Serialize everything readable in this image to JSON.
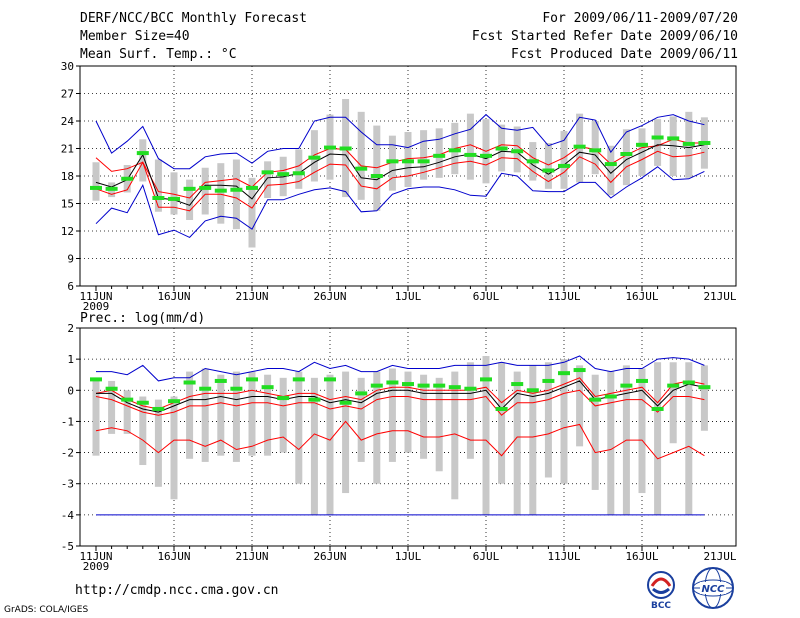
{
  "header": {
    "title": "DERF/NCC/BCC Monthly Forecast",
    "member_size": "Member Size=40",
    "variable": "Mean Surf. Temp.: °C",
    "period": "For 2009/06/11-2009/07/20",
    "started": "Fcst Started Refer Date 2009/06/10",
    "produced": "Fcst Produced Date 2009/06/11"
  },
  "footer": {
    "url": "http://cmdp.ncc.cma.gov.cn",
    "credit": "GrADS: COLA/IGES",
    "logo_bcc": "BCC",
    "logo_ncc": "NCC"
  },
  "chart_data": [
    {
      "type": "line",
      "title": "Mean Surf. Temp.: °C",
      "ylim": [
        6,
        30
      ],
      "yticks": [
        6,
        9,
        12,
        15,
        18,
        21,
        24,
        27,
        30
      ],
      "x_tick_labels": [
        "11JUN",
        "16JUN",
        "21JUN",
        "26JUN",
        "1JUL",
        "6JUL",
        "11JUL",
        "16JUL",
        "21JUL"
      ],
      "x_year_label": "2009",
      "days": 40,
      "grid": true,
      "series": [
        {
          "name": "max",
          "color": "#0000cc",
          "values": [
            24.0,
            20.5,
            21.8,
            23.4,
            19.9,
            18.8,
            18.8,
            20.1,
            20.4,
            20.5,
            19.4,
            20.7,
            21.0,
            21.0,
            24.0,
            24.4,
            24.4,
            22.8,
            21.4,
            21.4,
            21.1,
            21.8,
            22.0,
            22.6,
            23.1,
            24.7,
            23.2,
            23.0,
            23.3,
            21.3,
            21.9,
            24.4,
            24.1,
            20.6,
            22.8,
            23.5,
            24.4,
            24.7,
            24.0,
            23.6
          ]
        },
        {
          "name": "upper",
          "color": "#ff0000",
          "values": [
            20.0,
            18.5,
            18.8,
            19.5,
            16.3,
            16.0,
            15.6,
            17.3,
            17.5,
            17.7,
            16.8,
            18.4,
            18.6,
            19.1,
            20.3,
            21.0,
            20.9,
            19.1,
            18.9,
            19.5,
            19.9,
            20.0,
            20.3,
            21.0,
            21.4,
            20.7,
            21.4,
            21.3,
            20.0,
            19.2,
            20.0,
            21.2,
            20.9,
            19.3,
            20.3,
            21.1,
            21.3,
            22.0,
            21.6,
            21.6
          ]
        },
        {
          "name": "mean",
          "color": "#000000",
          "values": [
            17.3,
            16.8,
            17.6,
            20.3,
            15.6,
            15.4,
            14.8,
            17.0,
            17.0,
            16.9,
            15.5,
            17.8,
            17.9,
            18.3,
            19.5,
            20.4,
            20.3,
            17.8,
            17.6,
            18.6,
            18.9,
            19.0,
            19.5,
            20.1,
            20.4,
            19.9,
            20.7,
            20.6,
            19.2,
            18.2,
            19.2,
            20.6,
            20.3,
            18.3,
            19.8,
            20.6,
            21.4,
            21.3,
            21.1,
            21.4
          ]
        },
        {
          "name": "lower",
          "color": "#ff0000",
          "values": [
            16.6,
            16.0,
            16.5,
            19.5,
            14.6,
            14.6,
            14.2,
            16.0,
            16.0,
            15.6,
            14.5,
            17.0,
            17.1,
            17.4,
            18.4,
            19.3,
            19.2,
            16.9,
            16.6,
            17.8,
            18.0,
            18.4,
            18.9,
            19.4,
            19.6,
            19.2,
            20.0,
            19.9,
            18.5,
            17.4,
            18.4,
            20.1,
            19.3,
            17.3,
            19.0,
            19.8,
            20.7,
            20.1,
            20.2,
            20.6
          ]
        },
        {
          "name": "min",
          "color": "#0000cc",
          "values": [
            12.8,
            14.5,
            14.0,
            17.0,
            11.6,
            12.1,
            11.3,
            13.1,
            13.6,
            13.4,
            12.2,
            15.4,
            15.4,
            16.0,
            16.5,
            16.7,
            16.3,
            14.1,
            14.2,
            16.0,
            16.6,
            16.8,
            16.8,
            16.5,
            15.9,
            15.8,
            18.3,
            18.0,
            16.4,
            16.3,
            16.3,
            17.3,
            17.3,
            15.6,
            16.8,
            17.8,
            19.0,
            17.6,
            17.7,
            18.5
          ]
        }
      ],
      "ensemble_boxes": [
        [
          15.3,
          19.5
        ],
        [
          15.7,
          17.3
        ],
        [
          16.2,
          19.2
        ],
        [
          17.4,
          22.0
        ],
        [
          14.1,
          19.8
        ],
        [
          13.8,
          18.4
        ],
        [
          13.2,
          17.6
        ],
        [
          13.8,
          18.9
        ],
        [
          12.8,
          19.4
        ],
        [
          12.2,
          19.8
        ],
        [
          10.2,
          17.8
        ],
        [
          15.6,
          19.6
        ],
        [
          15.8,
          20.1
        ],
        [
          16.6,
          20.9
        ],
        [
          17.4,
          23.0
        ],
        [
          17.6,
          24.7
        ],
        [
          15.7,
          26.4
        ],
        [
          15.4,
          25.0
        ],
        [
          14.2,
          23.5
        ],
        [
          16.4,
          22.4
        ],
        [
          16.8,
          22.8
        ],
        [
          17.6,
          23.0
        ],
        [
          17.8,
          23.2
        ],
        [
          18.2,
          23.8
        ],
        [
          17.6,
          24.8
        ],
        [
          17.2,
          24.2
        ],
        [
          18.5,
          23.6
        ],
        [
          18.4,
          23.4
        ],
        [
          17.5,
          21.7
        ],
        [
          16.6,
          21.6
        ],
        [
          16.6,
          22.9
        ],
        [
          17.3,
          24.8
        ],
        [
          18.2,
          24.0
        ],
        [
          15.9,
          21.3
        ],
        [
          17.0,
          23.1
        ],
        [
          18.0,
          23.2
        ],
        [
          19.1,
          24.2
        ],
        [
          18.0,
          24.5
        ],
        [
          17.8,
          25.0
        ],
        [
          18.8,
          24.4
        ]
      ],
      "observed": [
        16.7,
        16.6,
        17.7,
        20.5,
        15.6,
        15.5,
        16.6,
        16.7,
        16.4,
        16.5,
        16.7,
        18.4,
        18.2,
        18.3,
        20.0,
        21.1,
        21.0,
        18.8,
        18.0,
        19.6,
        19.6,
        19.6,
        20.2,
        20.8,
        20.3,
        20.2,
        21.0,
        20.7,
        19.6,
        18.6,
        19.1,
        21.2,
        20.8,
        19.3,
        20.4,
        21.4,
        22.2,
        22.1,
        21.5,
        21.6
      ]
    },
    {
      "type": "line",
      "title": "Prec.: log(mm/d)",
      "ylim": [
        -5,
        2
      ],
      "yticks": [
        -5,
        -4,
        -3,
        -2,
        -1,
        0,
        1,
        2
      ],
      "x_tick_labels": [
        "11JUN",
        "16JUN",
        "21JUN",
        "26JUN",
        "1JUL",
        "6JUL",
        "11JUL",
        "16JUL",
        "21JUL"
      ],
      "x_year_label": "2009",
      "days": 40,
      "grid": true,
      "series": [
        {
          "name": "max",
          "color": "#0000cc",
          "values": [
            0.6,
            0.6,
            0.5,
            0.8,
            0.3,
            0.4,
            0.4,
            0.7,
            0.6,
            0.5,
            0.6,
            0.7,
            0.7,
            0.6,
            0.9,
            0.7,
            0.8,
            0.6,
            0.6,
            0.8,
            0.7,
            0.7,
            0.7,
            0.8,
            0.8,
            0.8,
            0.9,
            0.8,
            0.8,
            0.8,
            0.9,
            1.1,
            0.7,
            0.6,
            0.7,
            0.7,
            1.0,
            1.05,
            1.0,
            0.8
          ]
        },
        {
          "name": "upper",
          "color": "#ff0000",
          "values": [
            -0.1,
            0.0,
            -0.3,
            -0.5,
            -0.6,
            -0.4,
            -0.2,
            -0.1,
            -0.1,
            -0.1,
            0.0,
            -0.1,
            -0.2,
            -0.1,
            -0.1,
            -0.3,
            -0.2,
            -0.3,
            0.0,
            0.1,
            0.1,
            0.0,
            0.0,
            0.0,
            0.0,
            0.1,
            -0.4,
            0.0,
            -0.1,
            0.0,
            0.2,
            0.4,
            -0.2,
            -0.1,
            0.0,
            0.1,
            -0.4,
            0.2,
            0.3,
            0.2
          ]
        },
        {
          "name": "mean",
          "color": "#000000",
          "values": [
            -0.1,
            -0.1,
            -0.4,
            -0.6,
            -0.7,
            -0.5,
            -0.3,
            -0.3,
            -0.2,
            -0.3,
            -0.2,
            -0.2,
            -0.3,
            -0.2,
            -0.2,
            -0.4,
            -0.3,
            -0.4,
            -0.1,
            0.0,
            0.0,
            -0.1,
            -0.1,
            -0.1,
            -0.1,
            0.0,
            -0.6,
            -0.1,
            -0.2,
            -0.1,
            0.1,
            0.3,
            -0.3,
            -0.2,
            -0.1,
            0.0,
            -0.5,
            0.0,
            0.2,
            0.1
          ]
        },
        {
          "name": "lower",
          "color": "#ff0000",
          "values": [
            -0.2,
            -0.3,
            -0.5,
            -0.7,
            -0.8,
            -0.7,
            -0.5,
            -0.5,
            -0.4,
            -0.5,
            -0.4,
            -0.4,
            -0.5,
            -0.4,
            -0.4,
            -0.6,
            -0.5,
            -0.6,
            -0.3,
            -0.2,
            -0.2,
            -0.3,
            -0.3,
            -0.3,
            -0.3,
            -0.2,
            -0.8,
            -0.4,
            -0.4,
            -0.3,
            -0.1,
            0.0,
            -0.5,
            -0.4,
            -0.3,
            -0.3,
            -0.7,
            -0.2,
            -0.2,
            -0.3
          ]
        },
        {
          "name": "min",
          "color": "#ff0000",
          "values": [
            -1.3,
            -1.2,
            -1.3,
            -1.6,
            -2.0,
            -1.6,
            -1.6,
            -1.8,
            -1.6,
            -1.9,
            -1.8,
            -1.6,
            -1.5,
            -1.9,
            -1.4,
            -1.6,
            -1.0,
            -1.6,
            -1.4,
            -1.3,
            -1.3,
            -1.5,
            -1.5,
            -1.4,
            -1.6,
            -1.6,
            -2.1,
            -1.5,
            -1.5,
            -1.4,
            -1.2,
            -1.1,
            -2.0,
            -1.9,
            -1.6,
            -1.6,
            -2.2,
            -2.0,
            -1.8,
            -2.1
          ]
        },
        {
          "name": "floor",
          "color": "#0000cc",
          "values": [
            -4,
            -4,
            -4,
            -4,
            -4,
            -4,
            -4,
            -4,
            -4,
            -4,
            -4,
            -4,
            -4,
            -4,
            -4,
            -4,
            -4,
            -4,
            -4,
            -4,
            -4,
            -4,
            -4,
            -4,
            -4,
            -4,
            -4,
            -4,
            -4,
            -4,
            -4,
            -4,
            -4,
            -4,
            -4,
            -4,
            -4,
            -4,
            -4,
            -4
          ]
        }
      ],
      "ensemble_boxes": [
        [
          -2.1,
          0.4
        ],
        [
          -1.4,
          0.3
        ],
        [
          -1.4,
          0.0
        ],
        [
          -2.4,
          -0.2
        ],
        [
          -3.1,
          -0.3
        ],
        [
          -3.5,
          -0.2
        ],
        [
          -2.2,
          0.6
        ],
        [
          -2.3,
          0.7
        ],
        [
          -2.1,
          0.5
        ],
        [
          -2.3,
          0.6
        ],
        [
          -2.1,
          0.6
        ],
        [
          -2.1,
          0.5
        ],
        [
          -2.0,
          0.4
        ],
        [
          -3.0,
          0.6
        ],
        [
          -4.0,
          0.4
        ],
        [
          -4.0,
          0.5
        ],
        [
          -3.3,
          0.6
        ],
        [
          -2.3,
          0.4
        ],
        [
          -3.0,
          0.6
        ],
        [
          -2.3,
          0.7
        ],
        [
          -2.0,
          0.6
        ],
        [
          -2.2,
          0.5
        ],
        [
          -2.6,
          0.4
        ],
        [
          -3.5,
          0.6
        ],
        [
          -2.2,
          0.9
        ],
        [
          -4.0,
          1.1
        ],
        [
          -3.0,
          0.9
        ],
        [
          -4.0,
          0.6
        ],
        [
          -4.0,
          0.8
        ],
        [
          -2.8,
          0.9
        ],
        [
          -3.0,
          1.0
        ],
        [
          -1.8,
          0.8
        ],
        [
          -3.2,
          0.5
        ],
        [
          -4.0,
          0.6
        ],
        [
          -4.0,
          0.8
        ],
        [
          -3.3,
          0.7
        ],
        [
          -4.0,
          0.9
        ],
        [
          -1.7,
          0.9
        ],
        [
          -4.0,
          0.9
        ],
        [
          -1.3,
          0.8
        ]
      ],
      "observed": [
        0.35,
        0.05,
        -0.3,
        -0.4,
        -0.6,
        -0.35,
        0.25,
        0.05,
        0.3,
        0.05,
        0.35,
        0.1,
        -0.25,
        0.35,
        -0.3,
        0.35,
        -0.4,
        -0.1,
        0.15,
        0.25,
        0.2,
        0.15,
        0.15,
        0.1,
        0.05,
        0.35,
        -0.6,
        0.2,
        0.0,
        0.3,
        0.55,
        0.65,
        -0.3,
        -0.2,
        0.15,
        0.3,
        -0.6,
        0.15,
        0.25,
        0.1
      ]
    }
  ]
}
